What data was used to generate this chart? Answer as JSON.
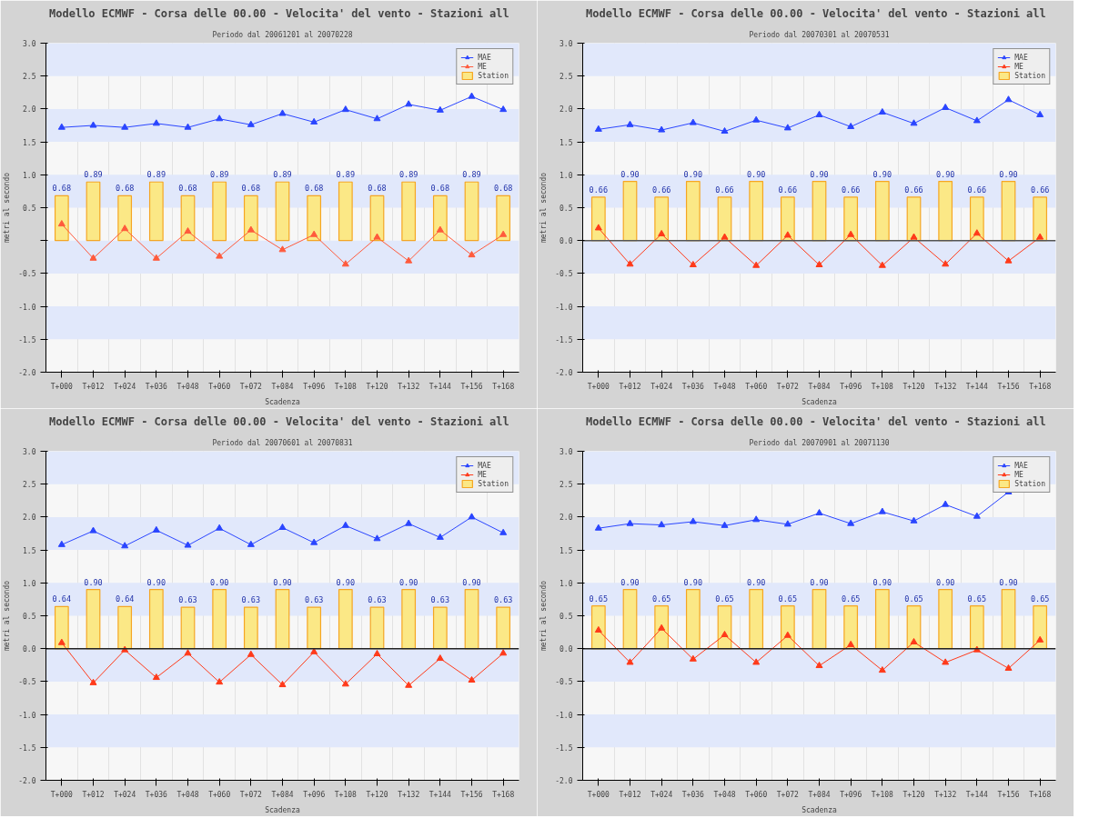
{
  "chart_data": [
    {
      "type": "bar",
      "title": "Modello ECMWF - Corsa delle 00.00 - Velocita' del vento -  Stazioni all",
      "subtitle": "Periodo dal 20061201 al 20070228",
      "xlabel": "Scadenza",
      "ylabel": "metri al secondo",
      "categories": [
        "T+000",
        "T+012",
        "T+024",
        "T+036",
        "T+048",
        "T+060",
        "T+072",
        "T+084",
        "T+096",
        "T+108",
        "T+120",
        "T+132",
        "T+144",
        "T+156",
        "T+168"
      ],
      "ylim": [
        -2.0,
        3.0
      ],
      "yticks": [
        {
          "value": -2.0,
          "label": "-2.0"
        },
        {
          "value": -1.5,
          "label": "-1.5"
        },
        {
          "value": -1.0,
          "label": "-1.0"
        },
        {
          "value": -0.5,
          "label": "-0.5"
        },
        {
          "value": 0,
          "label": null
        },
        {
          "value": 0.5,
          "label": "0.5"
        },
        {
          "value": 1.0,
          "label": "1.0"
        },
        {
          "value": 1.5,
          "label": "1.5"
        },
        {
          "value": 2.0,
          "label": "2.0"
        },
        {
          "value": 2.5,
          "label": "2.5"
        },
        {
          "value": 3.0,
          "label": "3.0"
        }
      ],
      "grid": "x",
      "legend": "top right",
      "marker": "triangle",
      "bands": [
        {
          "axis": "y",
          "from": 2.5,
          "to": 3.0,
          "color": "#e1e8fb"
        },
        {
          "axis": "y",
          "from": 1.5,
          "to": 2.0,
          "color": "#e1e8fb"
        },
        {
          "axis": "y",
          "from": 0.5,
          "to": 1.0,
          "color": "#e1e8fb"
        },
        {
          "axis": "y",
          "from": -0.5,
          "to": 0,
          "color": "#e1e8fb"
        },
        {
          "axis": "y",
          "from": -1.5,
          "to": -1.0,
          "color": "#e1e8fb"
        }
      ],
      "series": [
        {
          "name": "MAE",
          "type": "line",
          "color": "#2a45ff",
          "values": [
            1.72,
            1.75,
            1.72,
            1.78,
            1.72,
            1.85,
            1.76,
            1.93,
            1.8,
            1.99,
            1.85,
            2.07,
            1.98,
            2.19,
            1.99
          ]
        },
        {
          "name": "ME",
          "type": "line",
          "color": "#ff5a3c",
          "values": [
            0.25,
            -0.27,
            0.18,
            -0.27,
            0.14,
            -0.24,
            0.16,
            -0.14,
            0.09,
            -0.36,
            0.05,
            -0.31,
            0.16,
            -0.22,
            0.09
          ]
        },
        {
          "name": "Station",
          "color": "#fbe886",
          "values": [
            0.68,
            0.89,
            0.68,
            0.89,
            0.68,
            0.89,
            0.68,
            0.89,
            0.68,
            0.89,
            0.68,
            0.89,
            0.68,
            0.89,
            0.68
          ],
          "value_labels": [
            "0.68",
            "0.89",
            "0.68",
            "0.89",
            "0.68",
            "0.89",
            "0.68",
            "0.89",
            "0.68",
            "0.89",
            "0.68",
            "0.89",
            "0.68",
            "0.89",
            "0.68"
          ]
        }
      ]
    },
    {
      "type": "bar",
      "title": "Modello ECMWF - Corsa delle 00.00 - Velocita' del vento -  Stazioni all",
      "subtitle": "Periodo dal 20070301 al 20070531",
      "xlabel": "Scadenza",
      "ylabel": "metri al secondo",
      "categories": [
        "T+000",
        "T+012",
        "T+024",
        "T+036",
        "T+048",
        "T+060",
        "T+072",
        "T+084",
        "T+096",
        "T+108",
        "T+120",
        "T+132",
        "T+144",
        "T+156",
        "T+168"
      ],
      "ylim": [
        -2.0,
        3.0
      ],
      "yticks": [
        {
          "value": -2.0,
          "label": "-2.0"
        },
        {
          "value": -1.5,
          "label": "-1.5"
        },
        {
          "value": -1.0,
          "label": "-1.0"
        },
        {
          "value": -0.5,
          "label": "-0.5"
        },
        {
          "value": 0,
          "label": "0.0"
        },
        {
          "value": 0.5,
          "label": "0.5"
        },
        {
          "value": 1.0,
          "label": "1.0"
        },
        {
          "value": 1.5,
          "label": "1.5"
        },
        {
          "value": 2.0,
          "label": "2.0"
        },
        {
          "value": 2.5,
          "label": "2.5"
        },
        {
          "value": 3.0,
          "label": "3.0"
        }
      ],
      "grid": "x",
      "legend": "top right",
      "marker": "triangle",
      "ref_lines": [
        {
          "axis": "y",
          "value": 0,
          "color": "#555555"
        }
      ],
      "bands": [
        {
          "axis": "y",
          "from": 2.5,
          "to": 3.0,
          "color": "#e1e8fb"
        },
        {
          "axis": "y",
          "from": 1.5,
          "to": 2.0,
          "color": "#e1e8fb"
        },
        {
          "axis": "y",
          "from": 0.5,
          "to": 1.0,
          "color": "#e1e8fb"
        },
        {
          "axis": "y",
          "from": -0.5,
          "to": 0,
          "color": "#e1e8fb"
        },
        {
          "axis": "y",
          "from": -1.5,
          "to": -1.0,
          "color": "#e1e8fb"
        }
      ],
      "series": [
        {
          "name": "MAE",
          "type": "line",
          "color": "#2a45ff",
          "values": [
            1.69,
            1.76,
            1.68,
            1.79,
            1.66,
            1.83,
            1.71,
            1.91,
            1.73,
            1.95,
            1.78,
            2.02,
            1.82,
            2.14,
            1.91
          ]
        },
        {
          "name": "ME",
          "type": "line",
          "color": "#ff3a1a",
          "values": [
            0.19,
            -0.36,
            0.1,
            -0.37,
            0.05,
            -0.38,
            0.08,
            -0.37,
            0.09,
            -0.38,
            0.05,
            -0.36,
            0.11,
            -0.31,
            0.05
          ]
        },
        {
          "name": "Station",
          "color": "#fbe886",
          "values": [
            0.66,
            0.9,
            0.66,
            0.9,
            0.66,
            0.9,
            0.66,
            0.9,
            0.66,
            0.9,
            0.66,
            0.9,
            0.66,
            0.9,
            0.66
          ],
          "value_labels": [
            "0.66",
            "0.90",
            "0.66",
            "0.90",
            "0.66",
            "0.90",
            "0.66",
            "0.90",
            "0.66",
            "0.90",
            "0.66",
            "0.90",
            "0.66",
            "0.90",
            "0.66"
          ]
        }
      ]
    },
    {
      "type": "bar",
      "title": "Modello ECMWF - Corsa delle 00.00 - Velocita' del vento -  Stazioni all",
      "subtitle": "Periodo dal 20070601 al 20070831",
      "xlabel": "Scadenza",
      "ylabel": "metri al secondo",
      "categories": [
        "T+000",
        "T+012",
        "T+024",
        "T+036",
        "T+048",
        "T+060",
        "T+072",
        "T+084",
        "T+096",
        "T+108",
        "T+120",
        "T+132",
        "T+144",
        "T+156",
        "T+168"
      ],
      "ylim": [
        -2.0,
        3.0
      ],
      "yticks": [
        {
          "value": -2.0,
          "label": "-2.0"
        },
        {
          "value": -1.5,
          "label": "-1.5"
        },
        {
          "value": -1.0,
          "label": "-1.0"
        },
        {
          "value": -0.5,
          "label": "-0.5"
        },
        {
          "value": 0,
          "label": "0.0"
        },
        {
          "value": 0.5,
          "label": "0.5"
        },
        {
          "value": 1.0,
          "label": "1.0"
        },
        {
          "value": 1.5,
          "label": "1.5"
        },
        {
          "value": 2.0,
          "label": "2.0"
        },
        {
          "value": 2.5,
          "label": "2.5"
        },
        {
          "value": 3.0,
          "label": "3.0"
        }
      ],
      "grid": "x",
      "legend": "top right",
      "marker": "triangle",
      "ref_lines": [
        {
          "axis": "y",
          "value": 0,
          "color": "#222222"
        }
      ],
      "bands": [
        {
          "axis": "y",
          "from": 2.5,
          "to": 3.0,
          "color": "#e1e8fb"
        },
        {
          "axis": "y",
          "from": 1.5,
          "to": 2.0,
          "color": "#e1e8fb"
        },
        {
          "axis": "y",
          "from": 0.5,
          "to": 1.0,
          "color": "#e1e8fb"
        },
        {
          "axis": "y",
          "from": -0.5,
          "to": 0,
          "color": "#e1e8fb"
        },
        {
          "axis": "y",
          "from": -1.5,
          "to": -1.0,
          "color": "#e1e8fb"
        }
      ],
      "series": [
        {
          "name": "MAE",
          "type": "line",
          "color": "#2a45ff",
          "values": [
            1.58,
            1.79,
            1.56,
            1.8,
            1.57,
            1.83,
            1.58,
            1.84,
            1.61,
            1.87,
            1.67,
            1.9,
            1.69,
            2.0,
            1.76
          ]
        },
        {
          "name": "ME",
          "type": "line",
          "color": "#ff3a1a",
          "values": [
            0.09,
            -0.52,
            -0.02,
            -0.44,
            -0.07,
            -0.51,
            -0.09,
            -0.55,
            -0.05,
            -0.54,
            -0.08,
            -0.56,
            -0.15,
            -0.48,
            -0.07
          ]
        },
        {
          "name": "Station",
          "color": "#fbe886",
          "values": [
            0.64,
            0.9,
            0.64,
            0.9,
            0.63,
            0.9,
            0.63,
            0.9,
            0.63,
            0.9,
            0.63,
            0.9,
            0.63,
            0.9,
            0.63
          ],
          "value_labels": [
            "0.64",
            "0.90",
            "0.64",
            "0.90",
            "0.63",
            "0.90",
            "0.63",
            "0.90",
            "0.63",
            "0.90",
            "0.63",
            "0.90",
            "0.63",
            "0.90",
            "0.63"
          ]
        }
      ]
    },
    {
      "type": "bar",
      "title": "Modello ECMWF - Corsa delle 00.00 - Velocita' del vento -  Stazioni all",
      "subtitle": "Periodo dal 20070901 al 20071130",
      "xlabel": "Scadenza",
      "ylabel": "metri al secondo",
      "categories": [
        "T+000",
        "T+012",
        "T+024",
        "T+036",
        "T+048",
        "T+060",
        "T+072",
        "T+084",
        "T+096",
        "T+108",
        "T+120",
        "T+132",
        "T+144",
        "T+156",
        "T+168"
      ],
      "ylim": [
        -2.0,
        3.0
      ],
      "yticks": [
        {
          "value": -2.0,
          "label": "-2.0"
        },
        {
          "value": -1.5,
          "label": "-1.5"
        },
        {
          "value": -1.0,
          "label": "-1.0"
        },
        {
          "value": -0.5,
          "label": "-0.5"
        },
        {
          "value": 0,
          "label": "0.0"
        },
        {
          "value": 0.5,
          "label": "0.5"
        },
        {
          "value": 1.0,
          "label": "1.0"
        },
        {
          "value": 1.5,
          "label": "1.5"
        },
        {
          "value": 2.0,
          "label": "2.0"
        },
        {
          "value": 2.5,
          "label": "2.5"
        },
        {
          "value": 3.0,
          "label": "3.0"
        }
      ],
      "grid": "x",
      "legend": "top right",
      "marker": "triangle",
      "ref_lines": [
        {
          "axis": "y",
          "value": 0,
          "color": "#222222"
        }
      ],
      "bands": [
        {
          "axis": "y",
          "from": 2.5,
          "to": 3.0,
          "color": "#e1e8fb"
        },
        {
          "axis": "y",
          "from": 1.5,
          "to": 2.0,
          "color": "#e1e8fb"
        },
        {
          "axis": "y",
          "from": 0.5,
          "to": 1.0,
          "color": "#e1e8fb"
        },
        {
          "axis": "y",
          "from": -0.5,
          "to": 0,
          "color": "#e1e8fb"
        },
        {
          "axis": "y",
          "from": -1.5,
          "to": -1.0,
          "color": "#e1e8fb"
        }
      ],
      "series": [
        {
          "name": "MAE",
          "type": "line",
          "color": "#2a45ff",
          "values": [
            1.83,
            1.9,
            1.88,
            1.93,
            1.87,
            1.96,
            1.89,
            2.06,
            1.9,
            2.08,
            1.94,
            2.19,
            2.01,
            2.38,
            null
          ]
        },
        {
          "name": "ME",
          "type": "line",
          "color": "#ff3a1a",
          "values": [
            0.28,
            -0.21,
            0.31,
            -0.16,
            0.21,
            -0.21,
            0.2,
            -0.26,
            0.06,
            -0.33,
            0.1,
            -0.21,
            -0.02,
            -0.3,
            0.13
          ]
        },
        {
          "name": "Station",
          "color": "#fbe886",
          "values": [
            0.65,
            0.9,
            0.65,
            0.9,
            0.65,
            0.9,
            0.65,
            0.9,
            0.65,
            0.9,
            0.65,
            0.9,
            0.65,
            0.9,
            0.65
          ],
          "value_labels": [
            "0.65",
            "0.90",
            "0.65",
            "0.90",
            "0.65",
            "0.90",
            "0.65",
            "0.90",
            "0.65",
            "0.90",
            "0.65",
            "0.90",
            "0.65",
            "0.90",
            "0.65"
          ]
        }
      ]
    }
  ]
}
